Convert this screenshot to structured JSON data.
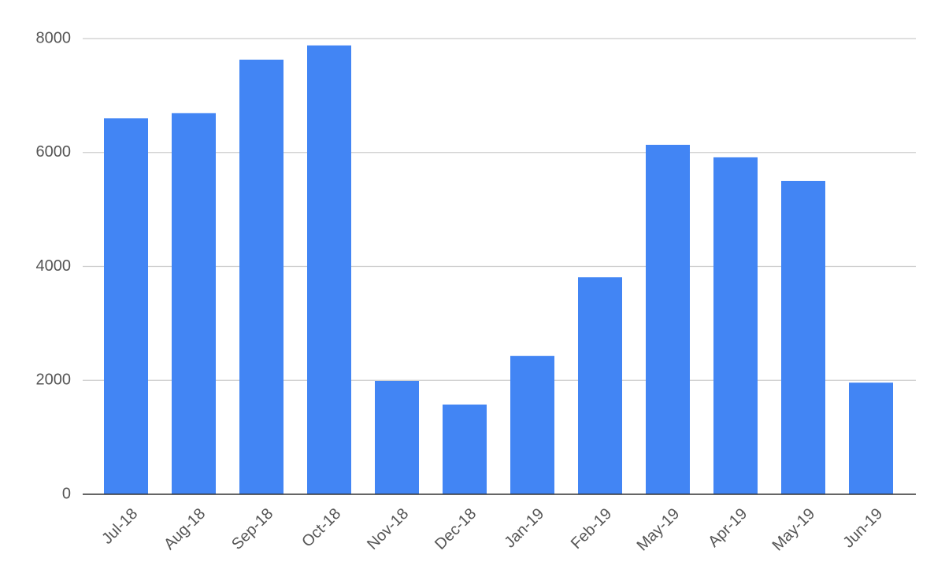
{
  "chart_data": {
    "type": "bar",
    "categories": [
      "Jul-18",
      "Aug-18",
      "Sep-18",
      "Oct-18",
      "Nov-18",
      "Dec-18",
      "Jan-19",
      "Feb-19",
      "May-19",
      "Apr-19",
      "May-19",
      "Jun-19"
    ],
    "values": [
      6600,
      6690,
      7630,
      7880,
      1990,
      1575,
      2430,
      3810,
      6135,
      5915,
      5500,
      1960
    ],
    "color": "#4285f4",
    "ylim": [
      0,
      8000
    ],
    "yticks": [
      0,
      2000,
      4000,
      6000,
      8000
    ],
    "grid": true
  }
}
